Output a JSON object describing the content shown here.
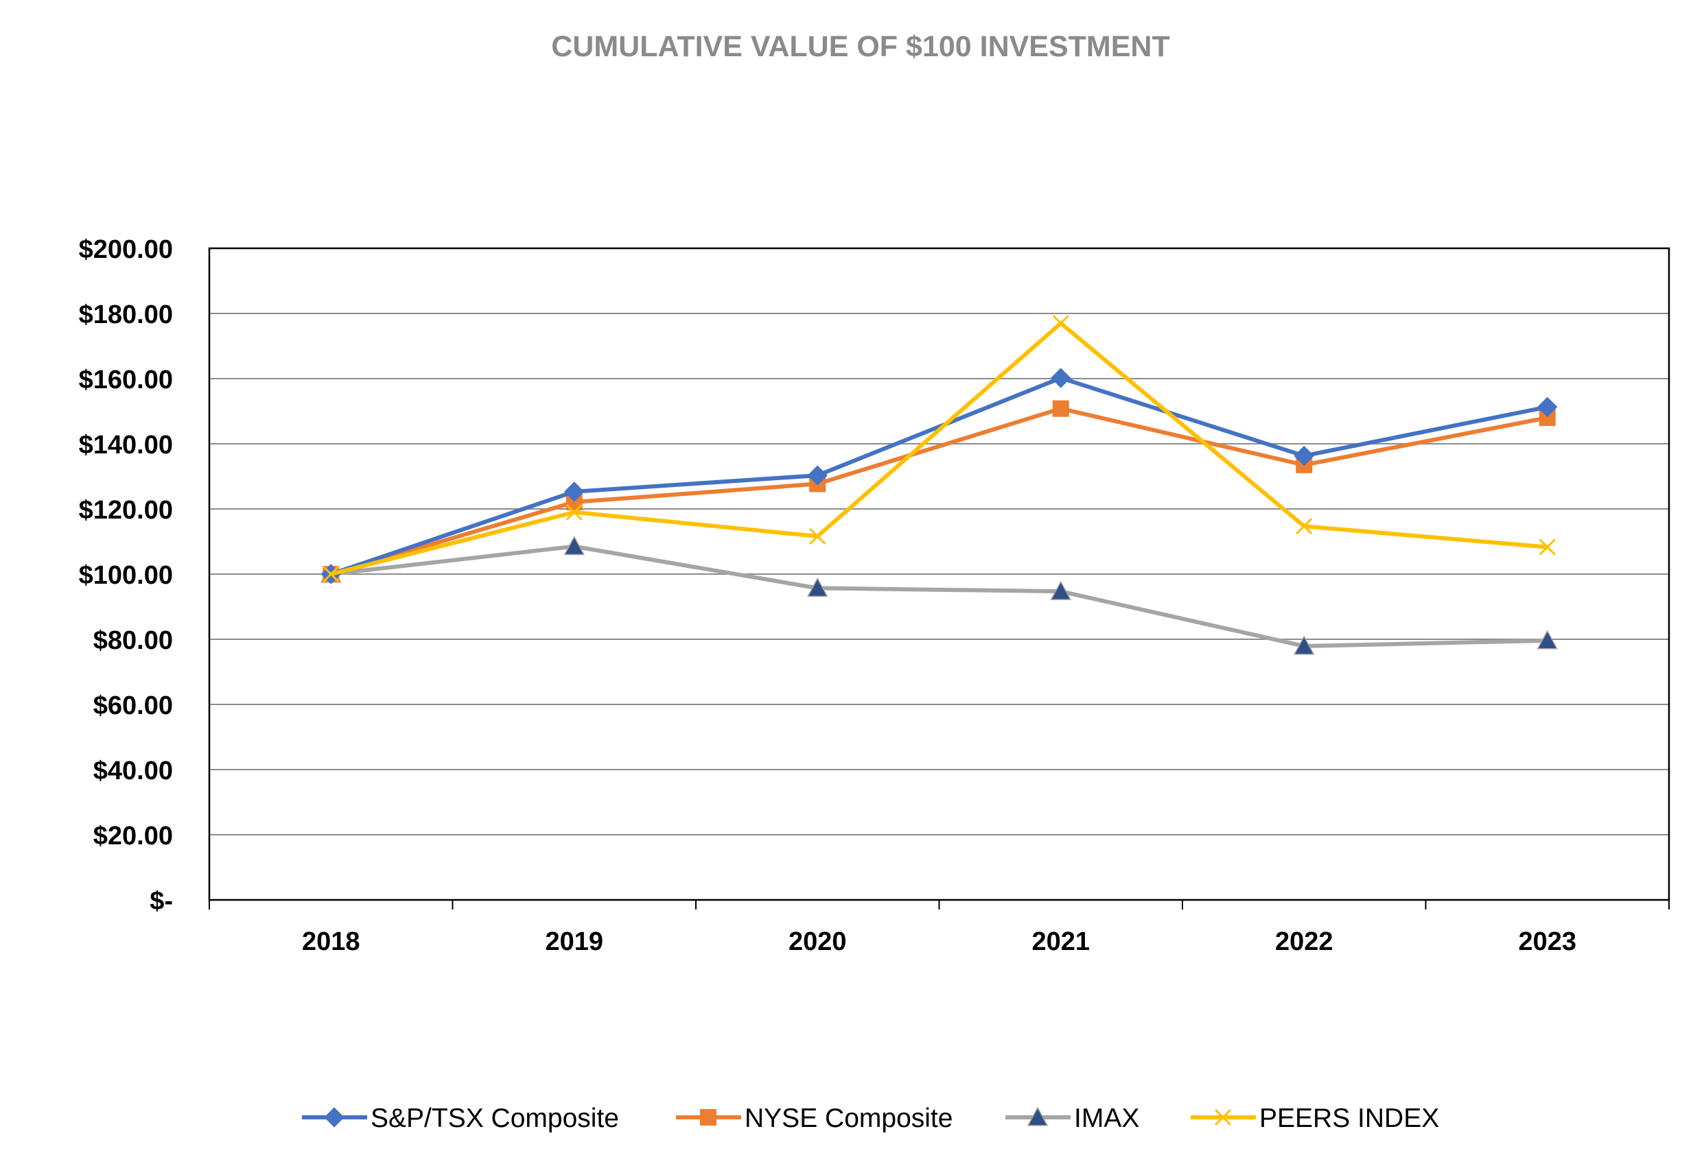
{
  "chart_data": {
    "type": "line",
    "title": "CUMULATIVE VALUE OF $100 INVESTMENT",
    "xlabel": "",
    "ylabel": "",
    "categories": [
      "2018",
      "2019",
      "2020",
      "2021",
      "2022",
      "2023"
    ],
    "ylim": [
      0,
      200
    ],
    "y_ticks": [
      0,
      20,
      40,
      60,
      80,
      100,
      120,
      140,
      160,
      180,
      200
    ],
    "y_tick_labels": [
      "$-",
      "$20.00",
      "$40.00",
      "$60.00",
      "$80.00",
      "$100.00",
      "$120.00",
      "$140.00",
      "$160.00",
      "$180.00",
      "$200.00"
    ],
    "grid": true,
    "legend_position": "bottom",
    "series": [
      {
        "name": "S&P/TSX Composite",
        "values": [
          100,
          125.3,
          130.3,
          160.2,
          136.3,
          151.3
        ],
        "color": "#4472c4",
        "marker": "diamond"
      },
      {
        "name": "NYSE Composite",
        "values": [
          100,
          122.1,
          127.7,
          150.8,
          133.5,
          148.0
        ],
        "color": "#ed7d31",
        "marker": "square"
      },
      {
        "name": "IMAX",
        "values": [
          100,
          108.5,
          95.7,
          94.7,
          77.9,
          79.6
        ],
        "color": "#a5a5a5",
        "marker": "triangle",
        "marker_color": "#2f4f86"
      },
      {
        "name": "PEERS INDEX",
        "values": [
          100,
          119.0,
          111.6,
          177.0,
          114.7,
          108.3
        ],
        "color": "#ffc000",
        "marker": "x"
      }
    ]
  }
}
